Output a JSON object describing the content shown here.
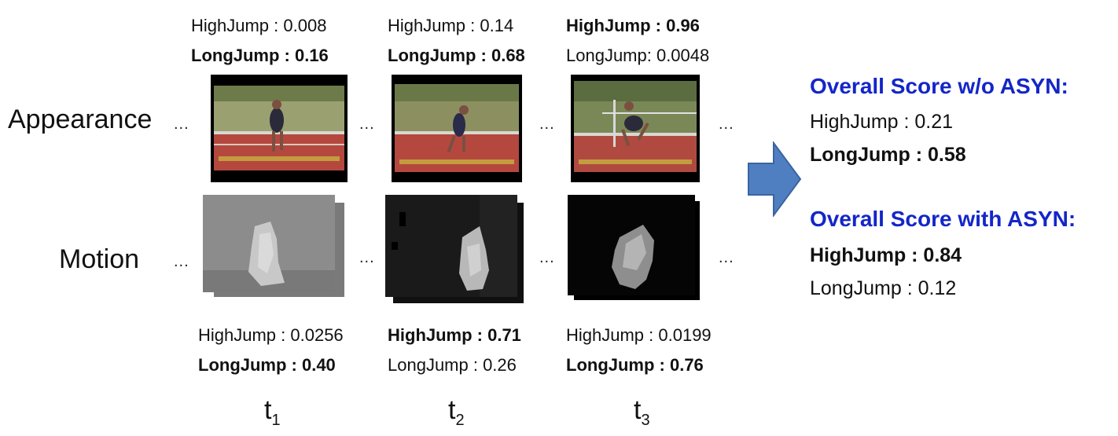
{
  "rows": {
    "appearance_label": "Appearance",
    "motion_label": "Motion"
  },
  "ellipsis": "...",
  "frames": [
    {
      "time_base": "t",
      "time_sub": "1",
      "appearance_scores": [
        {
          "text": "HighJump : 0.008",
          "bold": false
        },
        {
          "text": "LongJump : 0.16",
          "bold": true
        }
      ],
      "motion_scores": [
        {
          "text": "HighJump : 0.0256",
          "bold": false
        },
        {
          "text": "LongJump : 0.40",
          "bold": true
        }
      ]
    },
    {
      "time_base": "t",
      "time_sub": "2",
      "appearance_scores": [
        {
          "text": "HighJump : 0.14",
          "bold": false
        },
        {
          "text": "LongJump : 0.68",
          "bold": true
        }
      ],
      "motion_scores": [
        {
          "text": "HighJump : 0.71",
          "bold": true
        },
        {
          "text": "LongJump : 0.26",
          "bold": false
        }
      ]
    },
    {
      "time_base": "t",
      "time_sub": "3",
      "appearance_scores": [
        {
          "text": "HighJump : 0.96",
          "bold": true
        },
        {
          "text": "LongJump: 0.0048",
          "bold": false
        }
      ],
      "motion_scores": [
        {
          "text": "HighJump : 0.0199",
          "bold": false
        },
        {
          "text": "LongJump : 0.76",
          "bold": true
        }
      ]
    }
  ],
  "overall": {
    "without_title": "Overall Score w/o ASYN:",
    "without_lines": [
      {
        "text": "HighJump : 0.21",
        "bold": false
      },
      {
        "text": "LongJump :  0.58",
        "bold": true
      }
    ],
    "with_title": "Overall Score with ASYN:",
    "with_lines": [
      {
        "text": "HighJump : 0.84",
        "bold": true
      },
      {
        "text": "LongJump :  0.12",
        "bold": false
      }
    ]
  },
  "colors": {
    "title_blue": "#1426c8",
    "arrow_fill": "#4f7fc0",
    "arrow_stroke": "#3a64a0",
    "track_red": "#b4483e",
    "track_green": "#3c6a3a"
  }
}
